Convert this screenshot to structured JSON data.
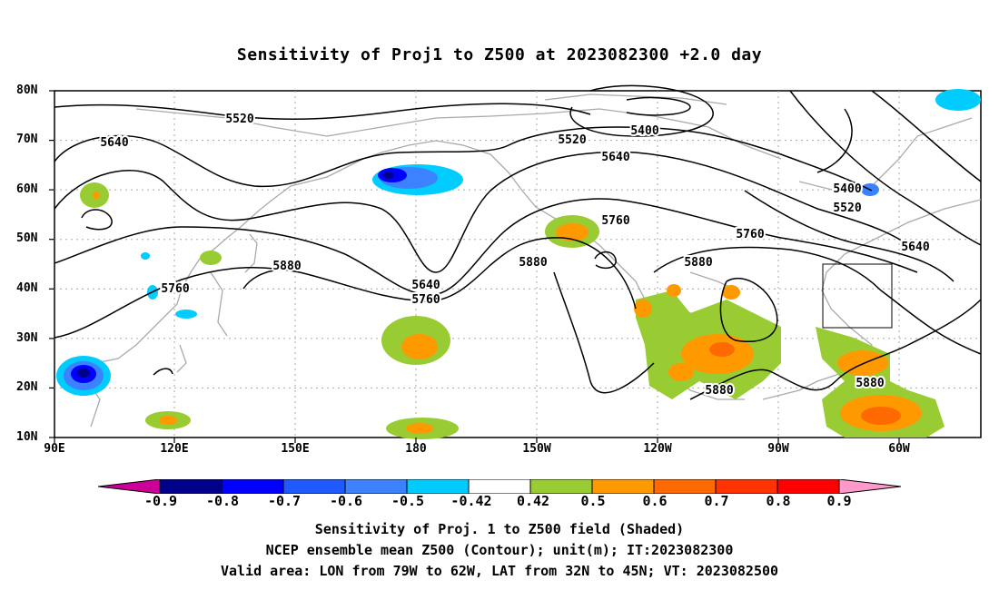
{
  "title": "Sensitivity of Proj1 to Z500 at 2023082300 +2.0 day",
  "lat_labels": [
    "80N",
    "70N",
    "60N",
    "50N",
    "40N",
    "30N",
    "20N",
    "10N"
  ],
  "lon_labels": [
    "90E",
    "120E",
    "150E",
    "180",
    "150W",
    "120W",
    "90W",
    "60W"
  ],
  "contour_labels": {
    "c5520a": "5520",
    "c5640a": "5640",
    "c5400a": "5400",
    "c5520b": "5520",
    "c5640b": "5640",
    "c5400b": "5400",
    "c5520c": "5520",
    "c5760a": "5760",
    "c5760b": "5760",
    "c5640c": "5640",
    "c5880a": "5880",
    "c5880b": "5880",
    "c5880c": "5880",
    "c5640d": "5640",
    "c5760c": "5760",
    "c5760d": "5760",
    "c5880d": "5880",
    "c5880e": "5880"
  },
  "colorbar": {
    "labels": [
      "-0.9",
      "-0.8",
      "-0.7",
      "-0.6",
      "-0.5",
      "-0.42",
      "0.42",
      "0.5",
      "0.6",
      "0.7",
      "0.8",
      "0.9"
    ],
    "colors": [
      "#cc0099",
      "#00008b",
      "#0000ff",
      "#1e5aff",
      "#3c82ff",
      "#00ccff",
      "#ffffff",
      "#99cc33",
      "#ff9900",
      "#ff6a00",
      "#ff3300",
      "#ff0000",
      "#ff99cc"
    ]
  },
  "captions": {
    "line1": "Sensitivity of Proj. 1 to Z500 field (Shaded)",
    "line2": "NCEP ensemble mean Z500 (Contour); unit(m); IT:2023082300",
    "line3": "Valid area: LON from 79W to 62W, LAT from 32N to 45N; VT: 2023082500"
  }
}
